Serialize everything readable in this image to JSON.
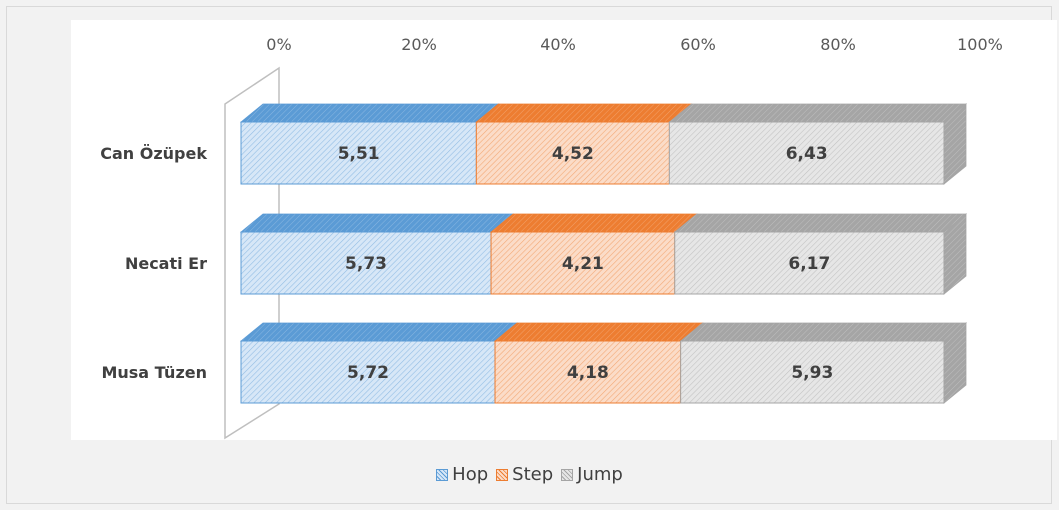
{
  "chart_data": {
    "type": "bar",
    "orientation": "horizontal",
    "stacked": "percent",
    "style": "3d-hatched",
    "categories": [
      "Can Özüpek",
      "Necati Er",
      "Musa Tüzen"
    ],
    "series": [
      {
        "name": "Hop",
        "values": [
          5.51,
          5.73,
          5.72
        ],
        "color": "#5b9bd5",
        "fill": "#d7e7f7"
      },
      {
        "name": "Step",
        "values": [
          4.52,
          4.21,
          4.18
        ],
        "color": "#ed7d31",
        "fill": "#fbdcc8"
      },
      {
        "name": "Jump",
        "values": [
          6.43,
          6.17,
          5.93
        ],
        "color": "#a5a5a5",
        "fill": "#e6e6e6"
      }
    ],
    "data_labels": [
      [
        "5,51",
        "4,52",
        "6,43"
      ],
      [
        "5,73",
        "4,21",
        "6,17"
      ],
      [
        "5,72",
        "4,18",
        "5,93"
      ]
    ],
    "x_ticks": [
      0,
      20,
      40,
      60,
      80,
      100
    ],
    "x_tick_labels": [
      "0%",
      "20%",
      "40%",
      "60%",
      "80%",
      "100%"
    ],
    "xlim": [
      0,
      100
    ],
    "grid": false,
    "legend_position": "bottom"
  }
}
